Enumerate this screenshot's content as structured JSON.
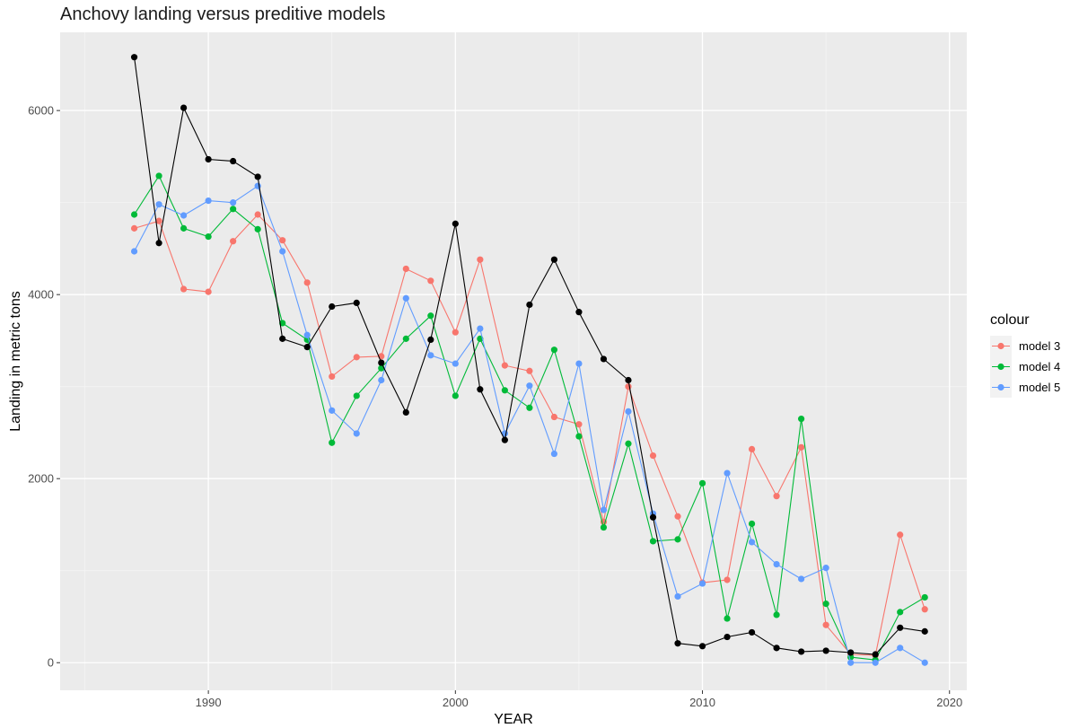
{
  "chart_data": {
    "type": "line",
    "title": "Anchovy landing versus preditive models",
    "xlabel": "YEAR",
    "ylabel": "Landing in metric tons",
    "xlim": [
      1984.0,
      2020.7
    ],
    "ylim": [
      -300,
      6850
    ],
    "xticks": [
      1990,
      2000,
      2010,
      2020
    ],
    "yticks": [
      0,
      2000,
      4000,
      6000
    ],
    "grid": true,
    "legend": {
      "title": "colour",
      "position": "right"
    },
    "x": [
      1987,
      1988,
      1989,
      1990,
      1991,
      1992,
      1993,
      1994,
      1995,
      1996,
      1997,
      1998,
      1999,
      2000,
      2001,
      2002,
      2003,
      2004,
      2005,
      2006,
      2007,
      2008,
      2009,
      2010,
      2011,
      2012,
      2013,
      2014,
      2015,
      2016,
      2017,
      2018,
      2019
    ],
    "observed": {
      "color": "#000000",
      "values": [
        6580,
        4560,
        6030,
        5470,
        5450,
        5280,
        3520,
        3430,
        3870,
        3910,
        3260,
        2720,
        3510,
        4770,
        2970,
        2420,
        3890,
        4380,
        3810,
        3300,
        3070,
        1580,
        210,
        180,
        280,
        330,
        160,
        120,
        130,
        110,
        90,
        380,
        340
      ]
    },
    "series": [
      {
        "name": "model 3",
        "color": "#F8766D",
        "values": [
          4720,
          4800,
          4060,
          4030,
          4580,
          4870,
          4590,
          4130,
          3110,
          3320,
          3330,
          4280,
          4150,
          3590,
          4380,
          3230,
          3170,
          2670,
          2590,
          1530,
          3000,
          2250,
          1590,
          870,
          900,
          2320,
          1810,
          2340,
          410,
          90,
          80,
          1390,
          580
        ]
      },
      {
        "name": "model 4",
        "color": "#00BA38",
        "values": [
          4870,
          5290,
          4720,
          4630,
          4930,
          4710,
          3690,
          3510,
          2390,
          2900,
          3200,
          3520,
          3770,
          2900,
          3520,
          2960,
          2770,
          3400,
          2460,
          1470,
          2380,
          1320,
          1340,
          1950,
          480,
          1510,
          520,
          2650,
          640,
          60,
          30,
          550,
          710
        ]
      },
      {
        "name": "model 5",
        "color": "#619CFF",
        "values": [
          4470,
          4980,
          4860,
          5020,
          5000,
          5180,
          4470,
          3560,
          2740,
          2490,
          3070,
          3960,
          3340,
          3250,
          3630,
          2490,
          3010,
          2270,
          3250,
          1660,
          2730,
          1620,
          720,
          860,
          2060,
          1310,
          1070,
          910,
          1030,
          0,
          0,
          160,
          0
        ]
      }
    ]
  }
}
